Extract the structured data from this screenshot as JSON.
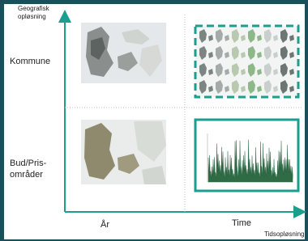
{
  "axes": {
    "y_title": "Geografisk opløsning",
    "x_title": "Tidsopløsning"
  },
  "rows": [
    "Kommune",
    "Bud/Pris-områder"
  ],
  "columns": [
    "År",
    "Time"
  ]
}
